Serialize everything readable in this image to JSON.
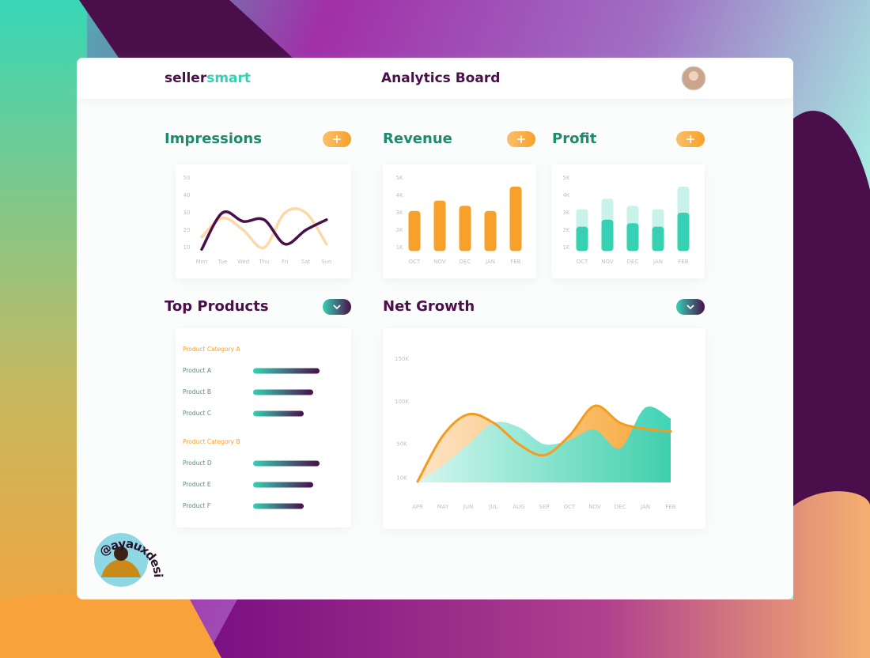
{
  "header": {
    "brand_prefix": "seller",
    "brand_suffix": "smart",
    "title": "Analytics Board"
  },
  "impressions": {
    "type": "line",
    "title": "Impressions",
    "categories": [
      "Mon",
      "Tue",
      "Wed",
      "Thu",
      "Fri",
      "Sat",
      "Sun"
    ],
    "ylim": [
      5,
      50
    ],
    "yticks": [
      10,
      20,
      30,
      40,
      50
    ],
    "series": [
      {
        "color": "#fbd9a8",
        "values": [
          16,
          27,
          20,
          10,
          30,
          30,
          12
        ]
      },
      {
        "color": "#4a0f4a",
        "values": [
          9,
          30,
          25,
          26,
          12,
          20,
          26
        ]
      }
    ]
  },
  "revenue": {
    "type": "bar",
    "title": "Revenue",
    "categories": [
      "OCT",
      "NOV",
      "DEC",
      "JAN",
      "FEB"
    ],
    "ylim": [
      800,
      5000
    ],
    "yticks": [
      {
        "value": 1000,
        "label": "1K"
      },
      {
        "value": 2000,
        "label": "2K"
      },
      {
        "value": 3000,
        "label": "3K"
      },
      {
        "value": 4000,
        "label": "4K"
      },
      {
        "value": 5000,
        "label": "5K"
      }
    ],
    "series": [
      {
        "color": "#f7a12a",
        "values": [
          3100,
          3700,
          3400,
          3100,
          4500
        ]
      }
    ]
  },
  "profit": {
    "type": "bar",
    "title": "Profit",
    "categories": [
      "OCT",
      "NOV",
      "DEC",
      "JAN",
      "FEB"
    ],
    "ylim": [
      800,
      5000
    ],
    "yticks": [
      {
        "value": 1000,
        "label": "1K"
      },
      {
        "value": 2000,
        "label": "2K"
      },
      {
        "value": 3000,
        "label": "3K"
      },
      {
        "value": 4000,
        "label": "4K"
      },
      {
        "value": 5000,
        "label": "5K"
      }
    ],
    "series": [
      {
        "color": "#c9f3ea",
        "values": [
          3200,
          3800,
          3400,
          3200,
          4500
        ]
      },
      {
        "color": "#36d1b3",
        "values": [
          2200,
          2600,
          2400,
          2200,
          3000
        ]
      }
    ]
  },
  "top_products": {
    "title": "Top Products",
    "xlim": [
      0,
      100
    ],
    "groups": [
      {
        "name": "Product Category A",
        "items": [
          {
            "name": "Product A",
            "value": 84
          },
          {
            "name": "Product B",
            "value": 76
          },
          {
            "name": "Product C",
            "value": 64
          }
        ]
      },
      {
        "name": "Product Category B",
        "items": [
          {
            "name": "Product D",
            "value": 84
          },
          {
            "name": "Product E",
            "value": 76
          },
          {
            "name": "Product F",
            "value": 64
          }
        ]
      }
    ]
  },
  "net_growth": {
    "type": "area",
    "title": "Net Growth",
    "categories": [
      "APR",
      "MAY",
      "JUN",
      "JUL",
      "AUG",
      "SEP",
      "OCT",
      "NOV",
      "DEC",
      "JAN",
      "FEB"
    ],
    "ylim": [
      5000,
      150000
    ],
    "yticks": [
      {
        "value": 10000,
        "label": "10K"
      },
      {
        "value": 50000,
        "label": "50K"
      },
      {
        "value": 100000,
        "label": "100K"
      },
      {
        "value": 150000,
        "label": "150K"
      }
    ],
    "series": [
      {
        "color": "#f39c1f",
        "values": [
          6000,
          60000,
          85000,
          75000,
          50000,
          37000,
          60000,
          95000,
          75000,
          68000,
          65000
        ]
      },
      {
        "color": "#36d1b3",
        "values": [
          5000,
          25000,
          50000,
          75000,
          70000,
          50000,
          55000,
          67000,
          45000,
          93000,
          80000
        ]
      }
    ]
  },
  "credit": {
    "handle": "@ayauxdesign"
  }
}
